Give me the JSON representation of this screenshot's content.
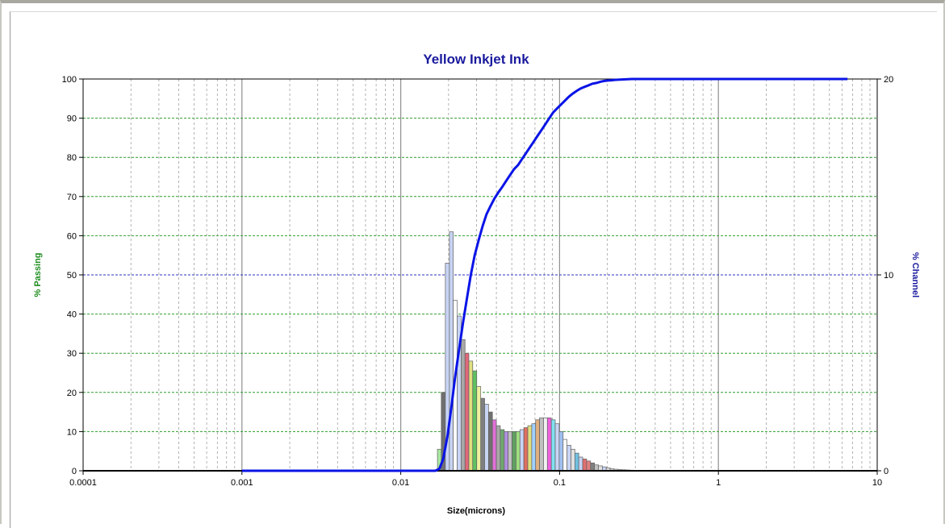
{
  "chart_data": {
    "type": "bar",
    "title": "Yellow Inkjet Ink",
    "xlabel": "Size(microns)",
    "ylabel_left": "% Passing",
    "ylabel_right": "% Channel",
    "x_scale": "log",
    "xlim": [
      0.0001,
      10
    ],
    "ylim_left": [
      0,
      100
    ],
    "ylim_right": [
      0,
      20
    ],
    "x_ticks": [
      "0.0001",
      "0.001",
      "0.01",
      "0.1",
      "1",
      "10"
    ],
    "y_ticks_left": [
      "0",
      "10",
      "20",
      "30",
      "40",
      "50",
      "60",
      "70",
      "80",
      "90",
      "100"
    ],
    "y_ticks_right": [
      "0",
      "10",
      "20"
    ],
    "grid": true,
    "colors": {
      "title": "#1a1a9e",
      "left_axis_label": "#1e8c1e",
      "right_axis_label": "#1a1a9e",
      "curve": "#0a14e6",
      "grid_h": "#2e9e2e",
      "grid_h_mid": "#3030c0",
      "grid_v_major": "#909090",
      "grid_v_minor": "#a0a0a0"
    },
    "series": [
      {
        "type": "bar",
        "axis": "right",
        "x": [
          0.0175,
          0.0185,
          0.0197,
          0.0208,
          0.022,
          0.0233,
          0.0247,
          0.0261,
          0.0276,
          0.0292,
          0.031,
          0.0328,
          0.0347,
          0.0367,
          0.0389,
          0.0411,
          0.0436,
          0.0461,
          0.0488,
          0.0517,
          0.0547,
          0.0579,
          0.0613,
          0.0649,
          0.0687,
          0.0727,
          0.077,
          0.0815,
          0.0862,
          0.0913,
          0.0966,
          0.1023,
          0.1083,
          0.1146,
          0.1213,
          0.1284,
          0.1359,
          0.1439,
          0.1523,
          0.1612,
          0.1707,
          0.1807,
          0.1912,
          0.2024,
          0.2143,
          0.2268,
          0.2401,
          0.2542,
          0.2691,
          0.2848
        ],
        "values": [
          1.1,
          4.0,
          10.6,
          12.2,
          8.7,
          7.9,
          6.7,
          6.0,
          5.6,
          5.1,
          4.3,
          3.7,
          3.4,
          3.0,
          2.6,
          2.3,
          2.1,
          2.0,
          2.0,
          2.0,
          2.0,
          2.1,
          2.2,
          2.3,
          2.4,
          2.6,
          2.7,
          2.7,
          2.7,
          2.6,
          2.4,
          2.0,
          1.6,
          1.3,
          1.1,
          0.9,
          0.7,
          0.6,
          0.5,
          0.4,
          0.3,
          0.25,
          0.2,
          0.15,
          0.1,
          0.08,
          0.06,
          0.05,
          0.04,
          0.03
        ],
        "bar_colors": [
          "#a8e8a0",
          "#707070",
          "#c8d4f4",
          "#c8d4f4",
          "#ffffff",
          "#c8d4f4",
          "#a8a8a8",
          "#e06878",
          "#e0e080",
          "#60c060",
          "#f0f0a0",
          "#808080",
          "#c8d4f4",
          "#707070",
          "#e070d8",
          "#a8a8a8",
          "#70a870",
          "#b090e0",
          "#c0c0c0",
          "#60a060",
          "#a0e080",
          "#c8d4f4",
          "#e07060",
          "#e0e080",
          "#a0d0ff",
          "#e0b080",
          "#c0c0c0",
          "#f0f0f0",
          "#f060e0",
          "#80e0f0",
          "#c8d4f4",
          "#a0c0f0",
          "#ffffff",
          "#c8d4f4",
          "#e0e0e0",
          "#70c0e0",
          "#c8d4f4",
          "#e07070",
          "#e08080",
          "#808080",
          "#c0c0c0",
          "#e0e0e0",
          "#c8d4f4",
          "#e0e0e0",
          "#d0d0d0",
          "#e0e0e0",
          "#e8e8e8",
          "#f0f0f0",
          "#f0f0f0",
          "#f0f0f0"
        ]
      },
      {
        "type": "line",
        "axis": "left",
        "x": [
          0.001,
          0.015,
          0.0165,
          0.0175,
          0.0185,
          0.0197,
          0.0208,
          0.022,
          0.0233,
          0.0247,
          0.0261,
          0.0276,
          0.0292,
          0.031,
          0.0328,
          0.0347,
          0.0367,
          0.0389,
          0.0411,
          0.0436,
          0.0461,
          0.0488,
          0.0517,
          0.0547,
          0.0579,
          0.0613,
          0.0649,
          0.0687,
          0.0727,
          0.077,
          0.0815,
          0.0862,
          0.0913,
          0.0966,
          0.1023,
          0.1083,
          0.1146,
          0.1213,
          0.1284,
          0.1359,
          0.1439,
          0.1523,
          0.1612,
          0.1707,
          0.1807,
          0.1912,
          0.2024,
          0.2143,
          0.2268,
          0.2401,
          0.2542,
          0.2691,
          0.2848,
          1.0,
          6.5
        ],
        "values": [
          0,
          0,
          0,
          0.5,
          3,
          9,
          16,
          24,
          31,
          38,
          44,
          50,
          55,
          59,
          62.5,
          65.5,
          67.5,
          69.5,
          71,
          72.5,
          74,
          75.5,
          77,
          78,
          79.5,
          81,
          82.5,
          84,
          85.5,
          87,
          88.5,
          90,
          91.5,
          92.5,
          93.5,
          94.5,
          95.5,
          96.3,
          97,
          97.6,
          98,
          98.4,
          98.8,
          99,
          99.3,
          99.5,
          99.6,
          99.7,
          99.8,
          99.85,
          99.9,
          99.95,
          100,
          100,
          100
        ]
      }
    ]
  }
}
